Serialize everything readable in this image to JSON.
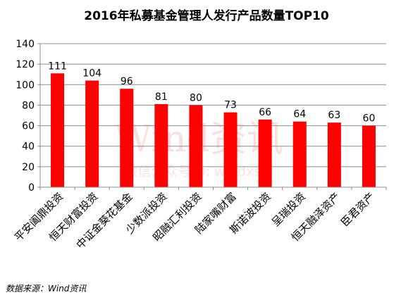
{
  "chart_data": {
    "type": "bar",
    "title": "2016年私募基金管理人发行产品数量TOP10",
    "categories": [
      "平安阖鼎投资",
      "恒天财富投资",
      "中证金葵花基金",
      "少数派投资",
      "昭融汇利投资",
      "陆家嘴财富",
      "斯诺波投资",
      "呈瑞投资",
      "恒天融泽资产",
      "臣君资产"
    ],
    "values": [
      111,
      104,
      96,
      81,
      80,
      73,
      66,
      64,
      63,
      60
    ],
    "ylim": [
      0,
      140
    ],
    "yticks": [
      0,
      20,
      40,
      60,
      80,
      100,
      120,
      140
    ],
    "grid": true,
    "legend": "none",
    "bar_color": "#ff0000"
  },
  "watermark": {
    "main": "Wind资讯",
    "sub": "微信公众号ID: windxshi"
  },
  "source": "数据来源：Wind资讯"
}
